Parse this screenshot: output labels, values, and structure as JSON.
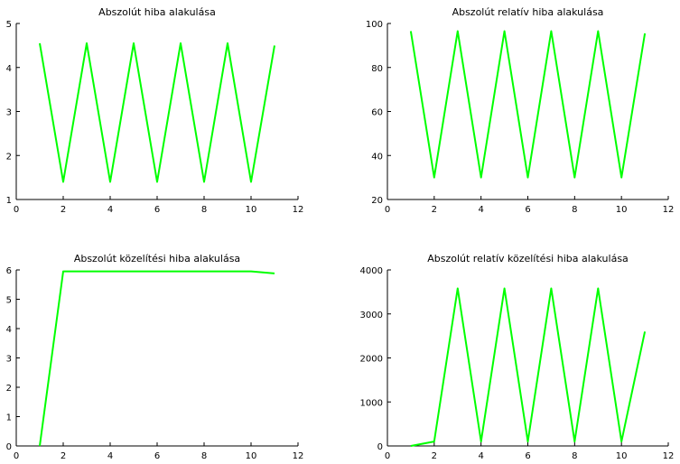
{
  "chart_data": [
    {
      "type": "line",
      "title": "Abszolút hiba alakulása",
      "xlabel": "",
      "ylabel": "",
      "xlim": [
        0,
        12
      ],
      "ylim": [
        1,
        5
      ],
      "xticks": [
        0,
        2,
        4,
        6,
        8,
        10,
        12
      ],
      "yticks": [
        1,
        2,
        3,
        4,
        5
      ],
      "grid": false,
      "series": [
        {
          "color": "#00ff00",
          "x": [
            1,
            2,
            3,
            4,
            5,
            6,
            7,
            8,
            9,
            10,
            11
          ],
          "y": [
            4.55,
            1.4,
            4.55,
            1.4,
            4.55,
            1.4,
            4.55,
            1.4,
            4.55,
            1.4,
            4.5
          ]
        }
      ]
    },
    {
      "type": "line",
      "title": "Abszolút relatív hiba alakulása",
      "xlabel": "",
      "ylabel": "",
      "xlim": [
        0,
        12
      ],
      "ylim": [
        20,
        100
      ],
      "xticks": [
        0,
        2,
        4,
        6,
        8,
        10,
        12
      ],
      "yticks": [
        20,
        40,
        60,
        80,
        100
      ],
      "grid": false,
      "series": [
        {
          "color": "#00ff00",
          "x": [
            1,
            2,
            3,
            4,
            5,
            6,
            7,
            8,
            9,
            10,
            11
          ],
          "y": [
            96.5,
            30,
            96.5,
            30,
            96.5,
            30,
            96.5,
            30,
            96.5,
            30,
            95.5
          ]
        }
      ]
    },
    {
      "type": "line",
      "title": "Abszolút közelítési hiba alakulása",
      "xlabel": "",
      "ylabel": "",
      "xlim": [
        0,
        12
      ],
      "ylim": [
        0,
        6
      ],
      "xticks": [
        0,
        2,
        4,
        6,
        8,
        10,
        12
      ],
      "yticks": [
        0,
        1,
        2,
        3,
        4,
        5,
        6
      ],
      "grid": false,
      "series": [
        {
          "color": "#00ff00",
          "x": [
            1,
            2,
            3,
            4,
            5,
            6,
            7,
            8,
            9,
            10,
            11
          ],
          "y": [
            0,
            5.95,
            5.95,
            5.95,
            5.95,
            5.95,
            5.95,
            5.95,
            5.95,
            5.95,
            5.88
          ]
        }
      ]
    },
    {
      "type": "line",
      "title": "Abszolút relatív közelítési hiba alakulása",
      "xlabel": "",
      "ylabel": "",
      "xlim": [
        0,
        12
      ],
      "ylim": [
        0,
        4000
      ],
      "xticks": [
        0,
        2,
        4,
        6,
        8,
        10,
        12
      ],
      "yticks": [
        0,
        1000,
        2000,
        3000,
        4000
      ],
      "grid": false,
      "series": [
        {
          "color": "#00ff00",
          "x": [
            1,
            2,
            3,
            4,
            5,
            6,
            7,
            8,
            9,
            10,
            11
          ],
          "y": [
            0,
            100,
            3580,
            100,
            3580,
            100,
            3580,
            100,
            3580,
            100,
            2600
          ]
        }
      ]
    }
  ]
}
